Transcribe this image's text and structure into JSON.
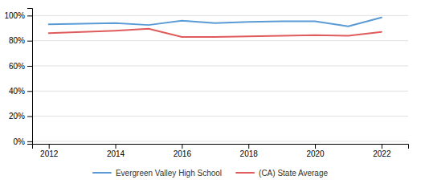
{
  "chart_data": {
    "type": "line",
    "x": [
      2012,
      2013,
      2014,
      2015,
      2016,
      2017,
      2018,
      2019,
      2020,
      2021,
      2022
    ],
    "series": [
      {
        "name": "Evergreen Valley High School",
        "color": "#5b9bd5",
        "values": [
          93,
          93.5,
          94,
          92.5,
          96,
          94,
          95,
          95.5,
          95.5,
          91.5,
          98.5
        ]
      },
      {
        "name": "(CA) State Average",
        "color": "#e05c5c",
        "values": [
          86,
          87,
          88,
          89.5,
          83,
          83,
          83.5,
          84,
          84.5,
          84,
          87
        ]
      }
    ],
    "xlim": [
      2011.5,
      2022.8
    ],
    "xticks": [
      2012,
      2014,
      2016,
      2018,
      2020,
      2022
    ],
    "ylim": [
      -2,
      106
    ],
    "yticks": [
      {
        "value": 0,
        "label": "0%"
      },
      {
        "value": 20,
        "label": "20%"
      },
      {
        "value": 40,
        "label": "40%"
      },
      {
        "value": 60,
        "label": "60%"
      },
      {
        "value": 80,
        "label": "80%"
      },
      {
        "value": 100,
        "label": "100%"
      }
    ],
    "grid": true,
    "legend": "bottom"
  }
}
